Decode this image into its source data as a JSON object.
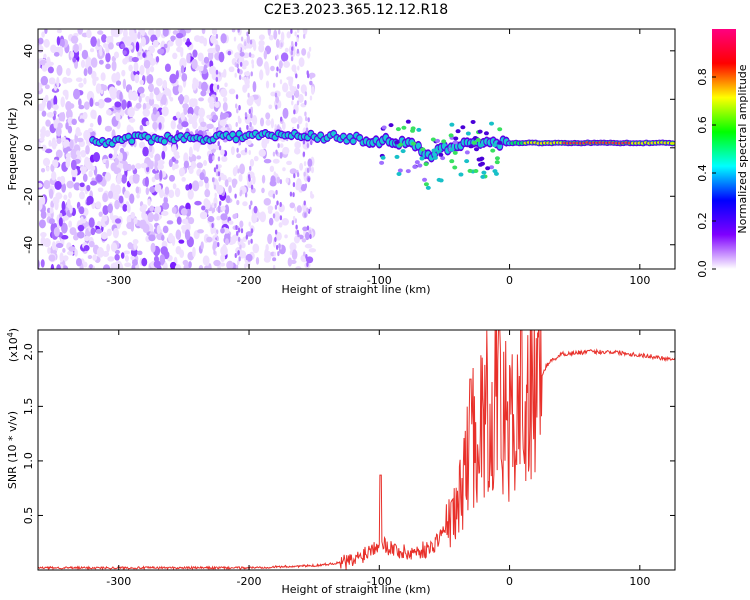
{
  "title": "C2E3.2023.365.12.12.R18",
  "colors": {
    "line": "#e8302a",
    "axis": "#000000"
  },
  "chart_data": [
    {
      "type": "heatmap",
      "xlabel": "Height of straight line (km)",
      "ylabel": "Frequency (Hz)",
      "xlim": [
        -362,
        127
      ],
      "ylim": [
        -50,
        49
      ],
      "xticks": [
        -300,
        -200,
        -100,
        0,
        100
      ],
      "yticks": [
        -40,
        -20,
        0,
        20,
        40
      ],
      "colorbar": {
        "label": "Normalized spectral amplitude",
        "range": [
          0,
          1
        ],
        "ticks": [
          "0.0",
          "0.2",
          "0.4",
          "0.6",
          "0.8"
        ],
        "colormap": [
          "#ffffff",
          "#7f00ff",
          "#0000ff",
          "#00ffff",
          "#00ff00",
          "#ffff00",
          "#ff0000",
          "#ff0080"
        ]
      },
      "ridge": [
        {
          "x": -300,
          "y": 4
        },
        {
          "x": -250,
          "y": 4
        },
        {
          "x": -200,
          "y": 5
        },
        {
          "x": -150,
          "y": 5
        },
        {
          "x": -100,
          "y": 3
        },
        {
          "x": -80,
          "y": 2
        },
        {
          "x": -60,
          "y": -3
        },
        {
          "x": -40,
          "y": 2
        },
        {
          "x": -20,
          "y": 2
        },
        {
          "x": 0,
          "y": 2
        },
        {
          "x": 50,
          "y": 2
        },
        {
          "x": 100,
          "y": 2
        },
        {
          "x": 125,
          "y": 2
        }
      ]
    },
    {
      "type": "line",
      "xlabel": "Height of straight line (km)",
      "ylabel": "SNR (10 * v/v)",
      "yscale_label": "(x10",
      "yscale_exp": "4",
      "yscale_close": ")",
      "xlim": [
        -362,
        127
      ],
      "ylim": [
        0,
        2.2
      ],
      "xticks": [
        -300,
        -200,
        -100,
        0,
        100
      ],
      "yticks": [
        "0.5",
        "1.0",
        "1.5",
        "2.0"
      ],
      "envelope": [
        {
          "x": -362,
          "y": 0.02
        },
        {
          "x": -200,
          "y": 0.02
        },
        {
          "x": -150,
          "y": 0.04
        },
        {
          "x": -120,
          "y": 0.08
        },
        {
          "x": -100,
          "y": 0.25
        },
        {
          "x": -80,
          "y": 0.15
        },
        {
          "x": -60,
          "y": 0.2
        },
        {
          "x": -40,
          "y": 0.55
        },
        {
          "x": -30,
          "y": 1.2
        },
        {
          "x": -20,
          "y": 1.4
        },
        {
          "x": -10,
          "y": 1.5
        },
        {
          "x": 0,
          "y": 1.3
        },
        {
          "x": 10,
          "y": 1.4
        },
        {
          "x": 20,
          "y": 1.7
        },
        {
          "x": 30,
          "y": 1.9
        },
        {
          "x": 40,
          "y": 1.98
        },
        {
          "x": 60,
          "y": 2.0
        },
        {
          "x": 80,
          "y": 2.0
        },
        {
          "x": 100,
          "y": 1.97
        },
        {
          "x": 127,
          "y": 1.93
        }
      ],
      "spikes": [
        {
          "x": -99,
          "y": 0.87
        },
        {
          "x": -30,
          "y": 1.75
        },
        {
          "x": -8,
          "y": 2.2
        },
        {
          "x": 9,
          "y": 2.2
        }
      ]
    }
  ]
}
